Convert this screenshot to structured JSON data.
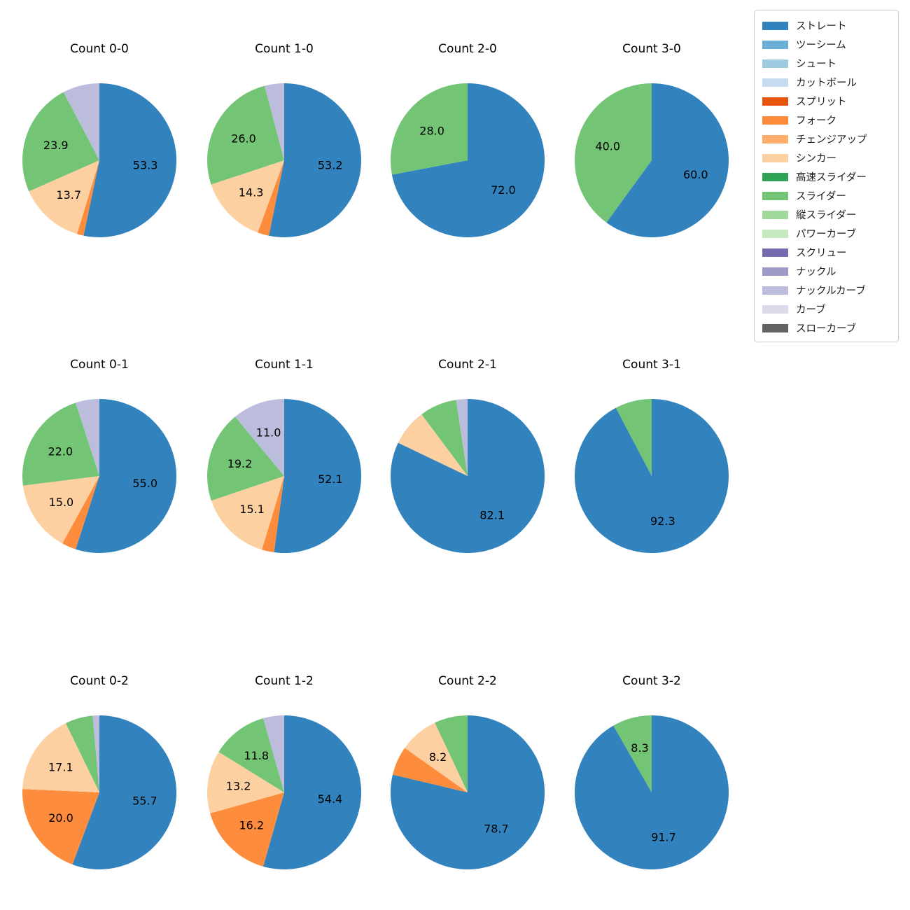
{
  "chart_data": {
    "type": "pie",
    "unit": "percent",
    "grid": {
      "rows": 3,
      "cols": 4
    },
    "legend": {
      "position": "upper right",
      "items": [
        {
          "label": "ストレート",
          "color": "#3182bd"
        },
        {
          "label": "ツーシーム",
          "color": "#6baed6"
        },
        {
          "label": "シュート",
          "color": "#9ecae1"
        },
        {
          "label": "カットボール",
          "color": "#c6dbef"
        },
        {
          "label": "スプリット",
          "color": "#e6550d"
        },
        {
          "label": "フォーク",
          "color": "#fd8d3c"
        },
        {
          "label": "チェンジアップ",
          "color": "#fdae6b"
        },
        {
          "label": "シンカー",
          "color": "#fdd0a2"
        },
        {
          "label": "高速スライダー",
          "color": "#31a354"
        },
        {
          "label": "スライダー",
          "color": "#74c476"
        },
        {
          "label": "縦スライダー",
          "color": "#a1d99b"
        },
        {
          "label": "パワーカーブ",
          "color": "#c7e9c0"
        },
        {
          "label": "スクリュー",
          "color": "#756bb1"
        },
        {
          "label": "ナックル",
          "color": "#9e9ac8"
        },
        {
          "label": "ナックルカーブ",
          "color": "#bcbddc"
        },
        {
          "label": "カーブ",
          "color": "#dadaeb"
        },
        {
          "label": "スローカーブ",
          "color": "#636363"
        }
      ]
    },
    "charts": [
      {
        "title": "Count 0-0",
        "slices": [
          {
            "pitch": "ストレート",
            "value": 53.3,
            "label": "53.3"
          },
          {
            "pitch": "フォーク",
            "value": 1.4,
            "label": ""
          },
          {
            "pitch": "シンカー",
            "value": 13.7,
            "label": "13.7"
          },
          {
            "pitch": "スライダー",
            "value": 23.9,
            "label": "23.9"
          },
          {
            "pitch": "ナックルカーブ",
            "value": 7.7,
            "label": ""
          }
        ]
      },
      {
        "title": "Count 1-0",
        "slices": [
          {
            "pitch": "ストレート",
            "value": 53.2,
            "label": "53.2"
          },
          {
            "pitch": "フォーク",
            "value": 2.4,
            "label": ""
          },
          {
            "pitch": "シンカー",
            "value": 14.3,
            "label": "14.3"
          },
          {
            "pitch": "スライダー",
            "value": 26.0,
            "label": "26.0"
          },
          {
            "pitch": "ナックルカーブ",
            "value": 4.1,
            "label": ""
          }
        ]
      },
      {
        "title": "Count 2-0",
        "slices": [
          {
            "pitch": "ストレート",
            "value": 72.0,
            "label": "72.0"
          },
          {
            "pitch": "スライダー",
            "value": 28.0,
            "label": "28.0"
          }
        ]
      },
      {
        "title": "Count 3-0",
        "slices": [
          {
            "pitch": "ストレート",
            "value": 60.0,
            "label": "60.0"
          },
          {
            "pitch": "スライダー",
            "value": 40.0,
            "label": "40.0"
          }
        ]
      },
      {
        "title": "Count 0-1",
        "slices": [
          {
            "pitch": "ストレート",
            "value": 55.0,
            "label": "55.0"
          },
          {
            "pitch": "フォーク",
            "value": 3.0,
            "label": ""
          },
          {
            "pitch": "シンカー",
            "value": 15.0,
            "label": "15.0"
          },
          {
            "pitch": "スライダー",
            "value": 22.0,
            "label": "22.0"
          },
          {
            "pitch": "ナックルカーブ",
            "value": 5.0,
            "label": ""
          }
        ]
      },
      {
        "title": "Count 1-1",
        "slices": [
          {
            "pitch": "ストレート",
            "value": 52.1,
            "label": "52.1"
          },
          {
            "pitch": "フォーク",
            "value": 2.6,
            "label": ""
          },
          {
            "pitch": "シンカー",
            "value": 15.1,
            "label": "15.1"
          },
          {
            "pitch": "スライダー",
            "value": 19.2,
            "label": "19.2"
          },
          {
            "pitch": "ナックルカーブ",
            "value": 11.0,
            "label": "11.0"
          }
        ]
      },
      {
        "title": "Count 2-1",
        "slices": [
          {
            "pitch": "ストレート",
            "value": 82.1,
            "label": "82.1"
          },
          {
            "pitch": "シンカー",
            "value": 7.7,
            "label": ""
          },
          {
            "pitch": "スライダー",
            "value": 7.8,
            "label": ""
          },
          {
            "pitch": "ナックルカーブ",
            "value": 2.4,
            "label": ""
          }
        ]
      },
      {
        "title": "Count 3-1",
        "slices": [
          {
            "pitch": "ストレート",
            "value": 92.3,
            "label": "92.3"
          },
          {
            "pitch": "スライダー",
            "value": 7.7,
            "label": ""
          }
        ]
      },
      {
        "title": "Count 0-2",
        "slices": [
          {
            "pitch": "ストレート",
            "value": 55.7,
            "label": "55.7"
          },
          {
            "pitch": "フォーク",
            "value": 20.0,
            "label": "20.0"
          },
          {
            "pitch": "シンカー",
            "value": 17.1,
            "label": "17.1"
          },
          {
            "pitch": "スライダー",
            "value": 5.8,
            "label": ""
          },
          {
            "pitch": "ナックルカーブ",
            "value": 1.4,
            "label": ""
          }
        ]
      },
      {
        "title": "Count 1-2",
        "slices": [
          {
            "pitch": "ストレート",
            "value": 54.4,
            "label": "54.4"
          },
          {
            "pitch": "フォーク",
            "value": 16.2,
            "label": "16.2"
          },
          {
            "pitch": "シンカー",
            "value": 13.2,
            "label": "13.2"
          },
          {
            "pitch": "スライダー",
            "value": 11.8,
            "label": "11.8"
          },
          {
            "pitch": "ナックルカーブ",
            "value": 4.4,
            "label": ""
          }
        ]
      },
      {
        "title": "Count 2-2",
        "slices": [
          {
            "pitch": "ストレート",
            "value": 78.7,
            "label": "78.7"
          },
          {
            "pitch": "フォーク",
            "value": 6.1,
            "label": ""
          },
          {
            "pitch": "シンカー",
            "value": 8.2,
            "label": "8.2"
          },
          {
            "pitch": "スライダー",
            "value": 7.0,
            "label": ""
          }
        ]
      },
      {
        "title": "Count 3-2",
        "slices": [
          {
            "pitch": "ストレート",
            "value": 91.7,
            "label": "91.7"
          },
          {
            "pitch": "スライダー",
            "value": 8.3,
            "label": "8.3"
          }
        ]
      }
    ]
  }
}
